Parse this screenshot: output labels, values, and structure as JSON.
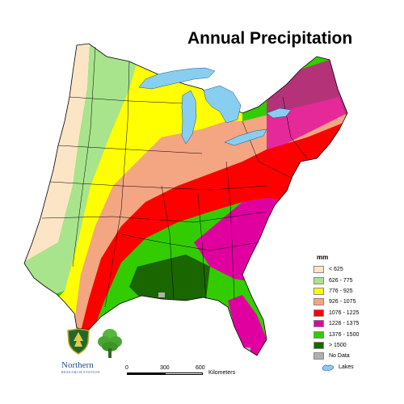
{
  "title": "Annual Precipitation",
  "legend": {
    "unit": "mm",
    "items": [
      {
        "label": "< 625",
        "color": "#fce5c5"
      },
      {
        "label": "626 - 775",
        "color": "#a8e48c"
      },
      {
        "label": "776 - 925",
        "color": "#ffff00"
      },
      {
        "label": "926 - 1075",
        "color": "#f4a582"
      },
      {
        "label": "1076 - 1225",
        "color": "#ff0000"
      },
      {
        "label": "1226 - 1375",
        "color": "#e000a0"
      },
      {
        "label": "1376 - 1500",
        "color": "#33cc00"
      },
      {
        "label": "> 1500",
        "color": "#1a6600"
      },
      {
        "label": "No Data",
        "color": "#b0b0b0"
      }
    ],
    "lakes_label": "Lakes",
    "lakes_color": "#88cef0"
  },
  "scale_bar": {
    "ticks": [
      "0",
      "300",
      "600"
    ],
    "unit": "Kilometers"
  },
  "logos": {
    "organization": "Northern",
    "subtitle": "RESEARCH STATION",
    "agency_badge": "USFS shield",
    "tree_emblem": "green tree"
  }
}
